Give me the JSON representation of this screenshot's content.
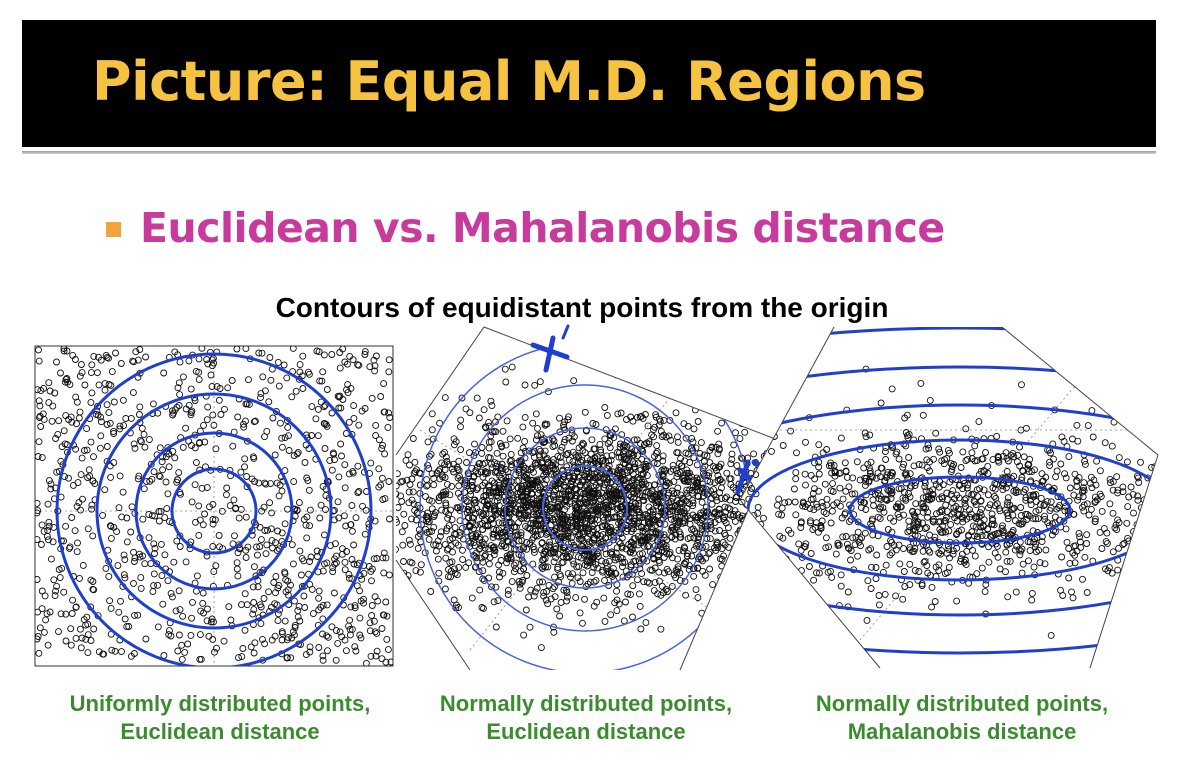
{
  "slide": {
    "title": "Picture: Equal M.D. Regions",
    "bullet": "Euclidean vs. Mahalanobis distance",
    "figure_title": "Contours of equidistant points from the origin"
  },
  "panels": [
    {
      "caption_line1": "Uniformly distributed points,",
      "caption_line2": "Euclidean distance"
    },
    {
      "caption_line1": "Normally distributed points,",
      "caption_line2": "Euclidean distance"
    },
    {
      "caption_line1": "Normally distributed points,",
      "caption_line2": "Mahalanobis distance"
    }
  ],
  "annotations": {
    "axis_mark_x": "x",
    "axis_mark_prime": "'"
  },
  "colors": {
    "title_bar": "#000000",
    "title_text": "#f5c242",
    "bullet_square": "#f0a43a",
    "bullet_text": "#c83b9c",
    "caption_text": "#3b8c2e",
    "contour": "#1f3fd0",
    "contour_thin": "#4a63e0",
    "points": "#111111"
  }
}
